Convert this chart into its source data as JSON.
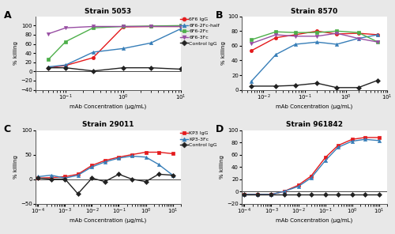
{
  "panel_A": {
    "title": "Strain 5053",
    "label": "A",
    "xlabel": "mAb Concentration (μg/mL)",
    "ylabel": "% killing",
    "ylim": [
      -40,
      120
    ],
    "yticks": [
      -40,
      -20,
      0,
      20,
      40,
      60,
      80,
      100
    ],
    "xlim": [
      0.03,
      10
    ],
    "series": [
      {
        "label": "6F6 IgG",
        "color": "#e41a1c",
        "marker": "o",
        "x": [
          0.05,
          0.1,
          0.3,
          1,
          3,
          10
        ],
        "y": [
          8,
          13,
          30,
          97,
          98,
          98
        ]
      },
      {
        "label": "6F6-2Fc-half",
        "color": "#377eb8",
        "marker": "^",
        "x": [
          0.05,
          0.1,
          0.3,
          1,
          3,
          10
        ],
        "y": [
          10,
          14,
          42,
          50,
          62,
          93
        ]
      },
      {
        "label": "6F6-2Fc",
        "color": "#4daf4a",
        "marker": "s",
        "x": [
          0.05,
          0.1,
          0.3,
          1,
          3,
          10
        ],
        "y": [
          26,
          65,
          95,
          98,
          99,
          100
        ]
      },
      {
        "label": "6F6-3Fc",
        "color": "#984ea3",
        "marker": "v",
        "x": [
          0.05,
          0.1,
          0.3,
          1,
          3,
          10
        ],
        "y": [
          82,
          95,
          98,
          98,
          98,
          98
        ]
      },
      {
        "label": "Control IgG",
        "color": "#222222",
        "marker": "D",
        "x": [
          0.05,
          0.1,
          0.3,
          1,
          3,
          10
        ],
        "y": [
          8,
          8,
          1,
          8,
          8,
          5
        ]
      }
    ]
  },
  "panel_B": {
    "title": "Strain 8570",
    "label": "B",
    "xlabel": "mAb Concentration (μg/mL)",
    "ylabel": "% killing",
    "ylim": [
      0,
      100
    ],
    "yticks": [
      0,
      20,
      40,
      60,
      80,
      100
    ],
    "xlim": [
      0.003,
      10
    ],
    "series": [
      {
        "label": "6F6 IgG",
        "color": "#e41a1c",
        "marker": "o",
        "x": [
          0.005,
          0.02,
          0.06,
          0.2,
          0.6,
          2,
          6
        ],
        "y": [
          53,
          71,
          75,
          80,
          76,
          77,
          75
        ]
      },
      {
        "label": "6F6-2Fc-half",
        "color": "#377eb8",
        "marker": "^",
        "x": [
          0.005,
          0.02,
          0.06,
          0.2,
          0.6,
          2,
          6
        ],
        "y": [
          11,
          48,
          62,
          65,
          62,
          70,
          75
        ]
      },
      {
        "label": "6F6-2Fc",
        "color": "#4daf4a",
        "marker": "s",
        "x": [
          0.005,
          0.02,
          0.06,
          0.2,
          0.6,
          2,
          6
        ],
        "y": [
          68,
          79,
          78,
          78,
          80,
          78,
          65
        ]
      },
      {
        "label": "6F6-3Fc",
        "color": "#984ea3",
        "marker": "v",
        "x": [
          0.005,
          0.02,
          0.06,
          0.2,
          0.6,
          2,
          6
        ],
        "y": [
          63,
          75,
          73,
          73,
          77,
          70,
          65
        ]
      },
      {
        "label": "Control IgG",
        "color": "#222222",
        "marker": "D",
        "x": [
          0.005,
          0.02,
          0.06,
          0.2,
          0.6,
          2,
          6
        ],
        "y": [
          5,
          5,
          6,
          9,
          3,
          3,
          13
        ]
      }
    ]
  },
  "panel_C": {
    "title": "Strain 29011",
    "label": "C",
    "xlabel": "mAb Concentration (μg/mL)",
    "ylabel": "% killing",
    "ylim": [
      -50,
      100
    ],
    "yticks": [
      -50,
      0,
      50,
      100
    ],
    "xlim": [
      8e-05,
      20
    ],
    "series": [
      {
        "label": "KP3 IgG",
        "color": "#e41a1c",
        "marker": "s",
        "x": [
          0.0001,
          0.0003,
          0.001,
          0.003,
          0.01,
          0.03,
          0.1,
          0.3,
          1,
          3,
          10
        ],
        "y": [
          2,
          3,
          5,
          10,
          28,
          38,
          45,
          50,
          55,
          55,
          52
        ]
      },
      {
        "label": "KP3-3Fc",
        "color": "#377eb8",
        "marker": "^",
        "x": [
          0.0001,
          0.0003,
          0.001,
          0.003,
          0.01,
          0.03,
          0.1,
          0.3,
          1,
          3,
          10
        ],
        "y": [
          5,
          8,
          2,
          8,
          25,
          35,
          43,
          47,
          45,
          30,
          8
        ]
      },
      {
        "label": "Control IgG",
        "color": "#222222",
        "marker": "D",
        "x": [
          0.0001,
          0.0003,
          0.001,
          0.003,
          0.01,
          0.03,
          0.1,
          0.3,
          1,
          3,
          10
        ],
        "y": [
          2,
          0,
          0,
          -30,
          2,
          -5,
          10,
          0,
          -5,
          10,
          8
        ]
      }
    ]
  },
  "panel_D": {
    "title": "Strain 961842",
    "label": "D",
    "xlabel": "mAb Concentration (μg/mL)",
    "ylabel": "% killing",
    "ylim": [
      -20,
      100
    ],
    "yticks": [
      -20,
      0,
      20,
      40,
      60,
      80,
      100
    ],
    "xlim": [
      8e-05,
      20
    ],
    "series": [
      {
        "label": "KP3 IgG",
        "color": "#e41a1c",
        "marker": "s",
        "x": [
          0.0001,
          0.0003,
          0.001,
          0.003,
          0.01,
          0.03,
          0.1,
          0.3,
          1,
          3,
          10
        ],
        "y": [
          -5,
          -5,
          -5,
          0,
          10,
          25,
          55,
          75,
          85,
          88,
          88
        ]
      },
      {
        "label": "KP3-3Fc",
        "color": "#377eb8",
        "marker": "^",
        "x": [
          0.0001,
          0.0003,
          0.001,
          0.003,
          0.01,
          0.03,
          0.1,
          0.3,
          1,
          3,
          10
        ],
        "y": [
          -5,
          -5,
          -5,
          0,
          8,
          22,
          50,
          72,
          82,
          85,
          83
        ]
      },
      {
        "label": "Control IgG",
        "color": "#222222",
        "marker": "D",
        "x": [
          0.0001,
          0.0003,
          0.001,
          0.003,
          0.01,
          0.03,
          0.1,
          0.3,
          1,
          3,
          10
        ],
        "y": [
          -5,
          -5,
          -5,
          -5,
          -5,
          -5,
          -5,
          -5,
          -5,
          -5,
          -5
        ]
      }
    ]
  },
  "fig_bg": "#e8e8e8",
  "plot_bg": "#ffffff",
  "border_color": "#cccccc",
  "legend_AB": [
    {
      "label": "6F6 IgG",
      "color": "#e41a1c",
      "marker": "o"
    },
    {
      "label": "6F6-2Fc-half",
      "color": "#377eb8",
      "marker": "^"
    },
    {
      "label": "6F6-2Fc",
      "color": "#4daf4a",
      "marker": "s"
    },
    {
      "label": "6F6-3Fc",
      "color": "#984ea3",
      "marker": "v"
    },
    {
      "label": "Control IgG",
      "color": "#222222",
      "marker": "D"
    }
  ],
  "legend_CD": [
    {
      "label": "KP3 IgG",
      "color": "#e41a1c",
      "marker": "s"
    },
    {
      "label": "KP3-3Fc",
      "color": "#377eb8",
      "marker": "^"
    },
    {
      "label": "Control IgG",
      "color": "#222222",
      "marker": "D"
    }
  ]
}
